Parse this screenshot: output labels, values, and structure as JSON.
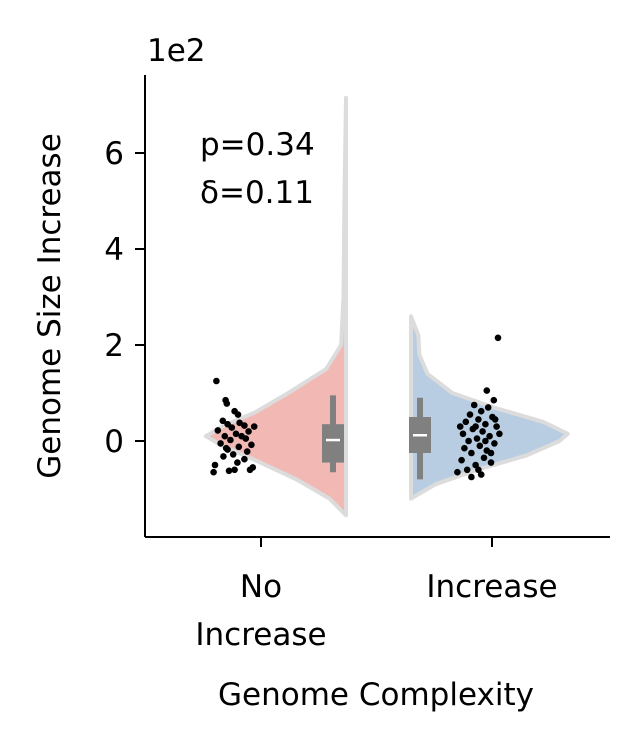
{
  "chart_data": {
    "type": "violin",
    "xlabel": "Genome Complexity",
    "ylabel": "Genome Size Increase",
    "scale_label": "1e2",
    "ylim": [
      -1.95,
      7.6
    ],
    "yticks": [
      0,
      2,
      4,
      6
    ],
    "ytick_labels": [
      "0",
      "2",
      "4",
      "6"
    ],
    "categories": [
      "No\nIncrease",
      "Increase"
    ],
    "annotation": [
      "p=0.34",
      "δ=0.11"
    ],
    "colors": {
      "no_increase_fill": "#f1b8b4",
      "increase_fill": "#b9cde2",
      "violin_edge": "#dcdcdc",
      "box": "#808080",
      "points": "#000000"
    },
    "groups": [
      {
        "name": "No Increase",
        "side": "left",
        "box": {
          "q1": -0.45,
          "median": 0.02,
          "q3": 0.35,
          "whisker_low": -0.65,
          "whisker_high": 0.95
        },
        "points": [
          [
            -0.95,
            1.25
          ],
          [
            -0.62,
            0.85
          ],
          [
            -0.58,
            0.78
          ],
          [
            -0.3,
            0.62
          ],
          [
            -0.18,
            0.55
          ],
          [
            -0.72,
            0.42
          ],
          [
            -0.12,
            0.38
          ],
          [
            -0.55,
            0.35
          ],
          [
            0.05,
            0.32
          ],
          [
            -0.4,
            0.28
          ],
          [
            -0.9,
            0.22
          ],
          [
            0.2,
            0.2
          ],
          [
            -0.25,
            0.15
          ],
          [
            -0.65,
            0.1
          ],
          [
            0.1,
            0.05
          ],
          [
            -0.45,
            0.02
          ],
          [
            -0.8,
            -0.05
          ],
          [
            0.3,
            -0.08
          ],
          [
            -0.15,
            -0.12
          ],
          [
            -0.55,
            -0.18
          ],
          [
            0.15,
            -0.22
          ],
          [
            -0.35,
            -0.28
          ],
          [
            -0.7,
            -0.32
          ],
          [
            0.05,
            -0.38
          ],
          [
            -0.2,
            -0.45
          ],
          [
            -1.0,
            -0.5
          ],
          [
            0.35,
            -0.55
          ],
          [
            -0.5,
            -0.62
          ],
          [
            -1.05,
            -0.65
          ],
          [
            0.25,
            -0.6
          ],
          [
            -0.6,
            -0.15
          ],
          [
            -0.05,
            0.1
          ],
          [
            0.4,
            0.3
          ],
          [
            -0.3,
            -0.6
          ]
        ],
        "kde": [
          [
            -1.55,
            0.0
          ],
          [
            -1.2,
            0.1
          ],
          [
            -0.8,
            0.3
          ],
          [
            -0.4,
            0.55
          ],
          [
            -0.1,
            0.75
          ],
          [
            0.1,
            0.85
          ],
          [
            0.3,
            0.75
          ],
          [
            0.6,
            0.55
          ],
          [
            1.0,
            0.35
          ],
          [
            1.5,
            0.12
          ],
          [
            2.0,
            0.03
          ],
          [
            3.0,
            0.015
          ],
          [
            5.0,
            0.01
          ],
          [
            7.15,
            0.0
          ]
        ]
      },
      {
        "name": "Increase",
        "side": "right",
        "box": {
          "q1": -0.25,
          "median": 0.12,
          "q3": 0.5,
          "whisker_low": -0.8,
          "whisker_high": 0.9
        },
        "points": [
          [
            0.75,
            2.15
          ],
          [
            0.35,
            1.05
          ],
          [
            0.6,
            0.85
          ],
          [
            -0.1,
            0.75
          ],
          [
            0.4,
            0.7
          ],
          [
            0.15,
            0.62
          ],
          [
            -0.25,
            0.55
          ],
          [
            0.55,
            0.5
          ],
          [
            0.05,
            0.45
          ],
          [
            -0.4,
            0.4
          ],
          [
            0.3,
            0.35
          ],
          [
            0.7,
            0.3
          ],
          [
            -0.15,
            0.25
          ],
          [
            0.2,
            0.2
          ],
          [
            -0.5,
            0.15
          ],
          [
            0.45,
            0.1
          ],
          [
            0.0,
            0.05
          ],
          [
            -0.3,
            0.0
          ],
          [
            0.62,
            -0.05
          ],
          [
            0.1,
            -0.1
          ],
          [
            -0.45,
            -0.15
          ],
          [
            0.35,
            -0.2
          ],
          [
            -0.2,
            -0.25
          ],
          [
            0.25,
            -0.35
          ],
          [
            -0.55,
            -0.4
          ],
          [
            0.5,
            -0.45
          ],
          [
            -0.05,
            -0.5
          ],
          [
            -0.35,
            -0.6
          ],
          [
            -0.7,
            -0.65
          ],
          [
            0.15,
            -0.7
          ],
          [
            -0.2,
            -0.75
          ],
          [
            0.05,
            -0.6
          ],
          [
            0.65,
            0.45
          ],
          [
            -0.6,
            0.3
          ],
          [
            0.3,
            0.0
          ],
          [
            0.8,
            0.15
          ],
          [
            -0.05,
            0.3
          ],
          [
            0.5,
            -0.25
          ]
        ],
        "kde": [
          [
            -1.2,
            0.0
          ],
          [
            -0.9,
            0.15
          ],
          [
            -0.6,
            0.4
          ],
          [
            -0.3,
            0.7
          ],
          [
            0.0,
            0.9
          ],
          [
            0.15,
            0.95
          ],
          [
            0.4,
            0.8
          ],
          [
            0.7,
            0.5
          ],
          [
            1.0,
            0.25
          ],
          [
            1.4,
            0.1
          ],
          [
            1.8,
            0.05
          ],
          [
            2.2,
            0.045
          ],
          [
            2.6,
            0.0
          ]
        ]
      }
    ]
  }
}
